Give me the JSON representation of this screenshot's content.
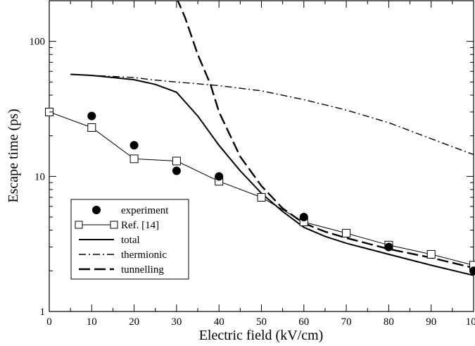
{
  "chart_data": {
    "type": "line",
    "xlabel": "Electric field (kV/cm)",
    "ylabel": "Escape time (ps)",
    "xlim": [
      0,
      100
    ],
    "ylim": [
      1,
      200
    ],
    "yscale": "log",
    "x_ticks": [
      0,
      10,
      20,
      30,
      40,
      50,
      60,
      70,
      80,
      90,
      100
    ],
    "x_tick_labels": [
      "0",
      "10",
      "20",
      "30",
      "40",
      "50",
      "60",
      "70",
      "80",
      "90",
      "100"
    ],
    "y_ticks": [
      1,
      10,
      100
    ],
    "y_tick_labels": [
      "1",
      "10",
      "100"
    ],
    "legend_position": "bottom-left",
    "grid": false,
    "series": [
      {
        "name": "experiment",
        "style": "filled-circle",
        "points": [
          [
            10,
            28
          ],
          [
            20,
            17
          ],
          [
            30,
            11
          ],
          [
            40,
            10
          ],
          [
            60,
            5
          ],
          [
            80,
            3
          ],
          [
            100,
            2
          ]
        ]
      },
      {
        "name": "Ref. [14]",
        "style": "line-open-square",
        "points": [
          [
            0,
            30
          ],
          [
            10,
            23
          ],
          [
            20,
            13.5
          ],
          [
            30,
            13
          ],
          [
            40,
            9.2
          ],
          [
            50,
            7
          ],
          [
            60,
            4.6
          ],
          [
            70,
            3.8
          ],
          [
            80,
            3.1
          ],
          [
            90,
            2.65
          ],
          [
            100,
            2.2
          ]
        ]
      },
      {
        "name": "total",
        "style": "solid",
        "points": [
          [
            5,
            57
          ],
          [
            10,
            56
          ],
          [
            15,
            54
          ],
          [
            20,
            52
          ],
          [
            25,
            48
          ],
          [
            30,
            42
          ],
          [
            35,
            28
          ],
          [
            40,
            17
          ],
          [
            45,
            11
          ],
          [
            50,
            7.5
          ],
          [
            55,
            5.5
          ],
          [
            60,
            4.2
          ],
          [
            65,
            3.6
          ],
          [
            70,
            3.2
          ],
          [
            80,
            2.65
          ],
          [
            90,
            2.2
          ],
          [
            100,
            1.85
          ]
        ]
      },
      {
        "name": "thermionic",
        "style": "dashdot",
        "points": [
          [
            5,
            57
          ],
          [
            10,
            56
          ],
          [
            15,
            55
          ],
          [
            20,
            54
          ],
          [
            24,
            52
          ],
          [
            30,
            50
          ],
          [
            40,
            47
          ],
          [
            50,
            43
          ],
          [
            60,
            37
          ],
          [
            70,
            31
          ],
          [
            80,
            25
          ],
          [
            90,
            19
          ],
          [
            100,
            14.5
          ]
        ]
      },
      {
        "name": "tunnelling",
        "style": "dashed",
        "points": [
          [
            30,
            210
          ],
          [
            32,
            150
          ],
          [
            35,
            80
          ],
          [
            38,
            48
          ],
          [
            40,
            30
          ],
          [
            45,
            14
          ],
          [
            50,
            8.5
          ],
          [
            55,
            5.8
          ],
          [
            60,
            4.5
          ],
          [
            65,
            3.9
          ],
          [
            70,
            3.5
          ],
          [
            80,
            2.9
          ],
          [
            90,
            2.5
          ],
          [
            100,
            2.1
          ]
        ]
      }
    ]
  }
}
